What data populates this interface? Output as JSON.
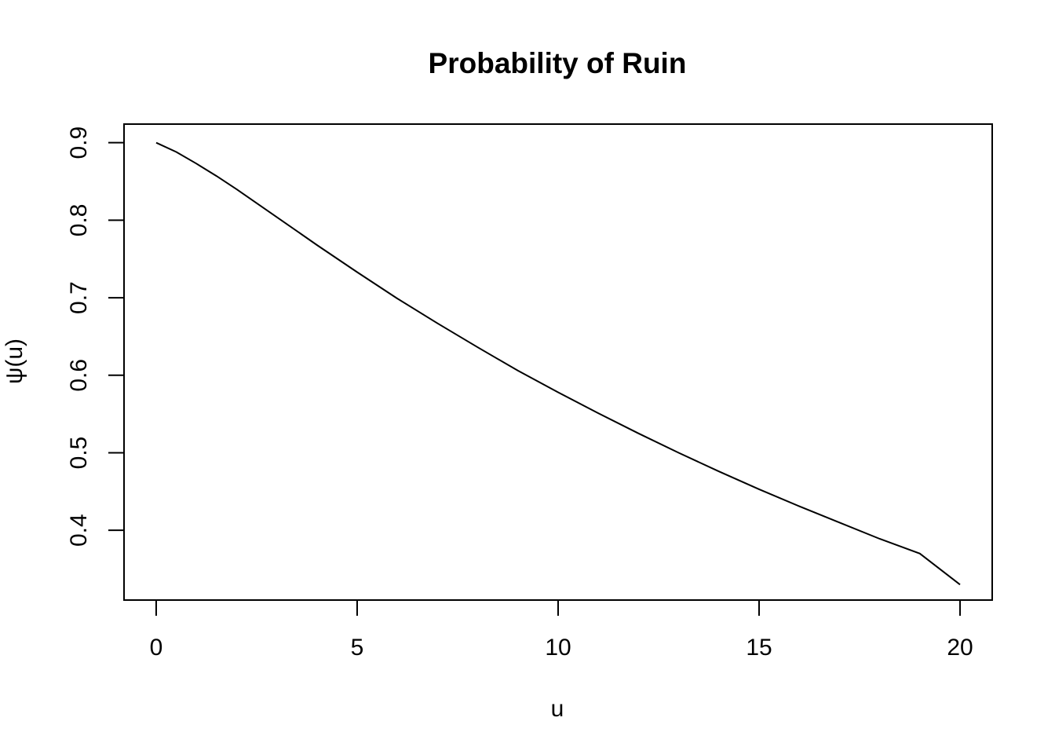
{
  "chart_data": {
    "type": "line",
    "title": "Probability of Ruin",
    "xlabel": "u",
    "ylabel": "ψ(u)",
    "xlim": [
      -0.8,
      20.8
    ],
    "ylim": [
      0.31,
      0.924
    ],
    "xticks": [
      0,
      5,
      10,
      15,
      20
    ],
    "xtick_labels": [
      "0",
      "5",
      "10",
      "15",
      "20"
    ],
    "yticks": [
      0.4,
      0.5,
      0.6,
      0.7,
      0.8,
      0.9
    ],
    "ytick_labels": [
      "0.4",
      "0.5",
      "0.6",
      "0.7",
      "0.8",
      "0.9"
    ],
    "grid": false,
    "legend": "none",
    "series": [
      {
        "x": [
          0,
          0.5,
          1,
          1.5,
          2,
          2.5,
          3,
          4,
          5,
          6,
          7,
          8,
          9,
          10,
          11,
          12,
          13,
          14,
          15,
          16,
          17,
          18,
          19,
          20
        ],
        "y": [
          0.9,
          0.888,
          0.873,
          0.857,
          0.84,
          0.822,
          0.804,
          0.768,
          0.733,
          0.699,
          0.667,
          0.636,
          0.606,
          0.578,
          0.551,
          0.525,
          0.5,
          0.476,
          0.453,
          0.431,
          0.41,
          0.389,
          0.37,
          0.33
        ]
      }
    ]
  }
}
